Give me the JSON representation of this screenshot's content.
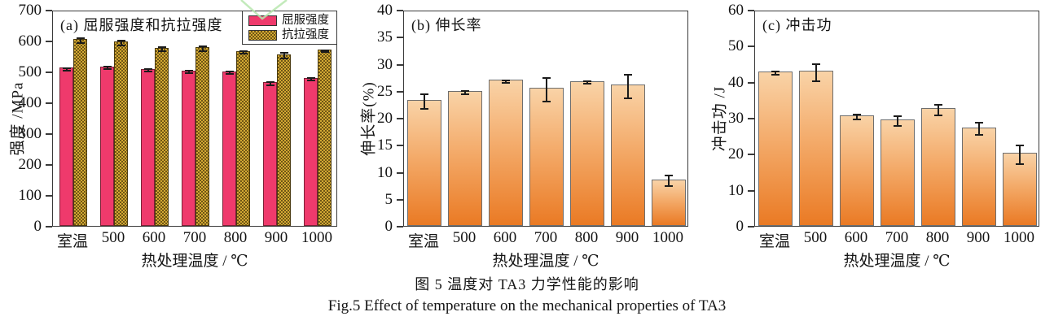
{
  "figure": {
    "caption_zh": "图 5  温度对 TA3 力学性能的影响",
    "caption_en": "Fig.5  Effect of temperature on the mechanical properties of TA3"
  },
  "colors": {
    "yield_bar": "#ef3a6c",
    "tensile_checker_dark": "#6f5614",
    "tensile_checker_light": "#d2a833",
    "gradient_bar_top": "#f9d3a7",
    "gradient_bar_bottom": "#ea7a24",
    "axis_frame": "#3a3a3a",
    "error_bar": "#1b1b1b",
    "watermark_green": "#b7e6ae"
  },
  "chart_data": [
    {
      "type": "bar",
      "panel": "(a)",
      "title": "(a) 屈服强度和抗拉强度",
      "categories": [
        "室温",
        "500",
        "600",
        "700",
        "800",
        "900",
        "1000"
      ],
      "series": [
        {
          "name": "屈服强度",
          "style": "solid-pink",
          "values": [
            513,
            516,
            509,
            503,
            501,
            466,
            480
          ],
          "errors": [
            4,
            4,
            4,
            4,
            4,
            5,
            5
          ]
        },
        {
          "name": "抗拉强度",
          "style": "checker-gold",
          "values": [
            605,
            597,
            577,
            579,
            567,
            556,
            571
          ],
          "errors": [
            8,
            8,
            7,
            7,
            4,
            9,
            3
          ]
        }
      ],
      "xlabel": "热处理温度 / ℃",
      "ylabel": "强度 /MPa",
      "ylim": [
        0,
        700
      ],
      "ystep": 100,
      "grid": false,
      "legend_position": "top-right"
    },
    {
      "type": "bar",
      "panel": "(b)",
      "title": "(b) 伸长率",
      "categories": [
        "室温",
        "500",
        "600",
        "700",
        "800",
        "900",
        "1000"
      ],
      "series": [
        {
          "name": "伸长率",
          "style": "gradient-orange",
          "values": [
            23.3,
            25.0,
            27.0,
            25.5,
            26.8,
            26.1,
            8.6
          ],
          "errors": [
            1.4,
            0.3,
            0.25,
            2.2,
            0.25,
            2.2,
            1.0
          ]
        }
      ],
      "xlabel": "热处理温度 / ℃",
      "ylabel": "伸长率(%)",
      "ylim": [
        0,
        40
      ],
      "ystep": 5,
      "grid": false,
      "legend_position": "none"
    },
    {
      "type": "bar",
      "panel": "(c)",
      "title": "(c) 冲击功",
      "categories": [
        "室温",
        "500",
        "600",
        "700",
        "800",
        "900",
        "1000"
      ],
      "series": [
        {
          "name": "冲击功",
          "style": "gradient-orange",
          "values": [
            42.8,
            43.0,
            30.6,
            29.6,
            32.6,
            27.4,
            20.2
          ],
          "errors": [
            0.5,
            2.4,
            0.7,
            1.3,
            1.5,
            1.6,
            2.6
          ]
        }
      ],
      "xlabel": "热处理温度 / ℃",
      "ylabel": "冲击功 /J",
      "ylim": [
        0,
        60
      ],
      "ystep": 10,
      "grid": false,
      "legend_position": "none"
    }
  ]
}
